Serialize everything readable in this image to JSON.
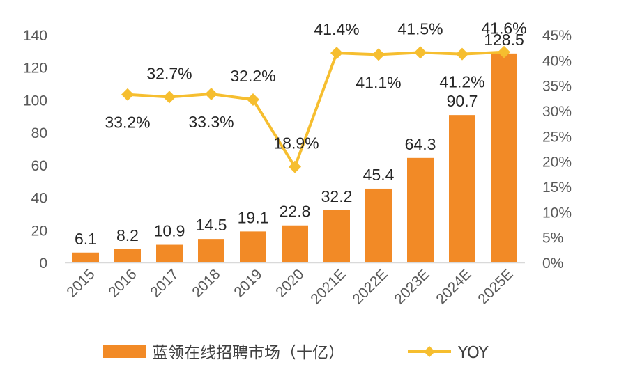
{
  "chart_data": {
    "type": "bar",
    "categories": [
      "2015",
      "2016",
      "2017",
      "2018",
      "2019",
      "2020",
      "2021E",
      "2022E",
      "2023E",
      "2024E",
      "2025E"
    ],
    "series": [
      {
        "name": "蓝领在线招聘市场（十亿）",
        "type": "bar",
        "axis": "left",
        "values": [
          6.1,
          8.2,
          10.9,
          14.5,
          19.1,
          22.8,
          32.2,
          45.4,
          64.3,
          90.7,
          128.5
        ],
        "labels": [
          "6.1",
          "8.2",
          "10.9",
          "14.5",
          "19.1",
          "22.8",
          "32.2",
          "45.4",
          "64.3",
          "90.7",
          "128.5"
        ]
      },
      {
        "name": "YOY",
        "type": "line",
        "axis": "right",
        "values": [
          null,
          33.2,
          32.7,
          33.3,
          32.2,
          18.9,
          41.4,
          41.1,
          41.5,
          41.2,
          41.6
        ],
        "labels": [
          "",
          "33.2%",
          "32.7%",
          "33.3%",
          "32.2%",
          "18.9%",
          "41.4%",
          "41.1%",
          "41.5%",
          "41.2%",
          "41.6%"
        ]
      }
    ],
    "y_left": {
      "min": 0,
      "max": 140,
      "ticks": [
        "0",
        "20",
        "40",
        "60",
        "80",
        "100",
        "120",
        "140"
      ]
    },
    "y_right": {
      "min": 0,
      "max": 45,
      "ticks": [
        "0%",
        "5%",
        "10%",
        "15%",
        "20%",
        "25%",
        "30%",
        "35%",
        "40%",
        "45%"
      ]
    },
    "grid": false,
    "legend_position": "bottom",
    "colors": {
      "bar": "#F28A26",
      "line": "#F6BE2F",
      "axis": "#D9D9D9",
      "tick_text": "#595959"
    }
  },
  "legend": {
    "bar_label": "蓝领在线招聘市场（十亿）",
    "line_label": "YOY"
  }
}
